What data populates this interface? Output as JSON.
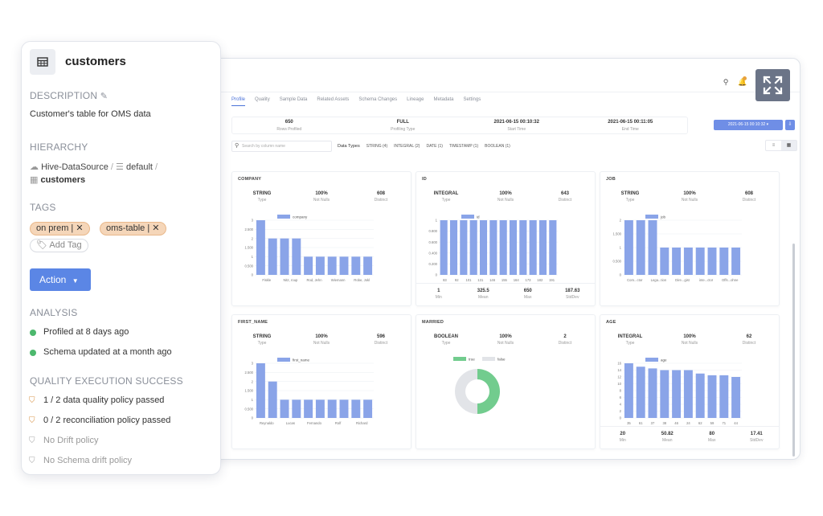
{
  "panel": {
    "title": "customers",
    "description_heading": "DESCRIPTION",
    "description": "Customer's table for OMS data",
    "hierarchy_heading": "HIERARCHY",
    "hierarchy": {
      "datasource": "Hive-DataSource",
      "database": "default",
      "table": "customers",
      "sep": "/"
    },
    "tags_heading": "TAGS",
    "tags": [
      "on prem",
      "oms-table"
    ],
    "tag_remove": "| ✕",
    "add_tag": "Add Tag",
    "action_label": "Action",
    "analysis_heading": "ANALYSIS",
    "analysis": [
      "Profiled at 8 days ago",
      "Schema updated at a month ago"
    ],
    "quality_heading": "QUALITY EXECUTION SUCCESS",
    "quality": [
      "1 / 2 data quality policy passed",
      "0 / 2 reconciliation policy passed",
      "No Drift policy",
      "No Schema drift policy"
    ]
  },
  "app": {
    "tabs": [
      "Profile",
      "Quality",
      "Sample Data",
      "Related Assets",
      "Schema Changes",
      "Lineage",
      "Metadata",
      "Settings"
    ],
    "summary": [
      {
        "value": "650",
        "label": "Rows Profiled"
      },
      {
        "value": "FULL",
        "label": "Profiling Type"
      },
      {
        "value": "2021-06-15 00:10:32",
        "label": "Start Time"
      },
      {
        "value": "2021-06-15 00:11:05",
        "label": "End Time"
      }
    ],
    "date_select": "2021-06-15 00:10:32 ▾",
    "search_placeholder": "Search by column name",
    "data_types_label": "Data Types",
    "data_types": [
      "STRING (4)",
      "INTEGRAL (2)",
      "DATE (1)",
      "TIMESTAMP (1)",
      "BOOLEAN (1)"
    ],
    "notification_count": "3"
  },
  "colors": {
    "bar": "#8aa4e8",
    "true": "#72cc8e",
    "false": "#e2e4e8",
    "accent": "#5b86e5",
    "tag": "#f5d6b9"
  },
  "chart_data": [
    {
      "name": "COMPANY",
      "type": "bar",
      "stats": [
        {
          "value": "STRING",
          "label": "Type"
        },
        {
          "value": "100%",
          "label": "Not Nulls"
        },
        {
          "value": "608",
          "label": "Distinct"
        }
      ],
      "legend": "company",
      "yticks": [
        "3",
        "2.500",
        "2",
        "1.500",
        "1",
        "0.500",
        "0"
      ],
      "ylim": [
        0,
        3
      ],
      "values": [
        3,
        2,
        2,
        2,
        1,
        1,
        1,
        1,
        1,
        1
      ],
      "xlabels": [
        "Fiskle",
        "Nitz, roup",
        "Rod, Jehn",
        "Wiemann",
        "Robe, Jokl"
      ]
    },
    {
      "name": "ID",
      "type": "bar",
      "stats": [
        {
          "value": "INTEGRAL",
          "label": "Type"
        },
        {
          "value": "100%",
          "label": "Not Nulls"
        },
        {
          "value": "643",
          "label": "Distinct"
        }
      ],
      "legend": "id",
      "yticks": [
        "1",
        "0.800",
        "0.600",
        "0.400",
        "0.200",
        "0"
      ],
      "ylim": [
        0,
        1
      ],
      "values": [
        1,
        1,
        1,
        1,
        1,
        1,
        1,
        1,
        1,
        1,
        1,
        1
      ],
      "xlabels": [
        "83",
        "92",
        "101",
        "131",
        "146",
        "155",
        "164",
        "173",
        "182",
        "191"
      ],
      "bottom": [
        {
          "value": "1",
          "label": "Min"
        },
        {
          "value": "325.5",
          "label": "Mean"
        },
        {
          "value": "650",
          "label": "Max"
        },
        {
          "value": "187.63",
          "label": "StdDev"
        }
      ]
    },
    {
      "name": "JOB",
      "type": "bar",
      "stats": [
        {
          "value": "STRING",
          "label": "Type"
        },
        {
          "value": "100%",
          "label": "Not Nulls"
        },
        {
          "value": "608",
          "label": "Distinct"
        }
      ],
      "legend": "job",
      "yticks": [
        "2",
        "1.500",
        "1",
        "0.500",
        "0"
      ],
      "ylim": [
        0,
        2
      ],
      "values": [
        2,
        2,
        2,
        1,
        1,
        1,
        1,
        1,
        1,
        1
      ],
      "xlabels": [
        "Com...ctor",
        "Lega...tion",
        "Dire...gist",
        "inte...ctor",
        "Offs...ohne"
      ]
    },
    {
      "name": "FIRST_NAME",
      "type": "bar",
      "stats": [
        {
          "value": "STRING",
          "label": "Type"
        },
        {
          "value": "100%",
          "label": "Not Nulls"
        },
        {
          "value": "596",
          "label": "Distinct"
        }
      ],
      "legend": "first_name",
      "yticks": [
        "3",
        "2.500",
        "2",
        "1.500",
        "1",
        "0.500",
        "0"
      ],
      "ylim": [
        0,
        3
      ],
      "values": [
        3,
        2,
        1,
        1,
        1,
        1,
        1,
        1,
        1,
        1
      ],
      "xlabels": [
        "Reynaldo",
        "Lucas",
        "Fernando",
        "Rolf",
        "Richard"
      ]
    },
    {
      "name": "MARRIED",
      "type": "pie",
      "stats": [
        {
          "value": "BOOLEAN",
          "label": "Type"
        },
        {
          "value": "100%",
          "label": "Not Nulls"
        },
        {
          "value": "2",
          "label": "Distinct"
        }
      ],
      "legend": [
        "true",
        "false"
      ],
      "values": [
        50,
        50
      ]
    },
    {
      "name": "AGE",
      "type": "bar",
      "stats": [
        {
          "value": "INTEGRAL",
          "label": "Type"
        },
        {
          "value": "100%",
          "label": "Not Nulls"
        },
        {
          "value": "62",
          "label": "Distinct"
        }
      ],
      "legend": "age",
      "yticks": [
        "16",
        "14",
        "12",
        "10",
        "8",
        "6",
        "4",
        "2",
        "0"
      ],
      "ylim": [
        0,
        16
      ],
      "values": [
        16,
        15,
        14.5,
        14,
        14,
        14,
        13,
        12.5,
        12.5,
        12
      ],
      "xlabels": [
        "35",
        "61",
        "37",
        "38",
        "46",
        "24",
        "62",
        "59",
        "71",
        "44"
      ],
      "bottom": [
        {
          "value": "20",
          "label": "Min"
        },
        {
          "value": "50.82",
          "label": "Mean"
        },
        {
          "value": "80",
          "label": "Max"
        },
        {
          "value": "17.41",
          "label": "StdDev"
        }
      ]
    }
  ]
}
